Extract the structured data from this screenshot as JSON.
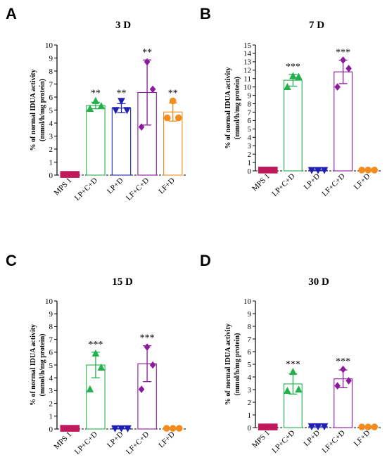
{
  "colors": {
    "MPS 1": "#c0185a",
    "LP+C+D": "#22b14c",
    "LP+D": "#1f1fb4",
    "LF+C+D": "#8b1a9c",
    "LF+D": "#f28c1e"
  },
  "markers": {
    "MPS 1": "square",
    "LP+C+D": "triangle-up",
    "LP+D": "triangle-down",
    "LF+C+D": "diamond",
    "LF+D": "circle"
  },
  "chart_data": [
    {
      "panel": "A",
      "type": "bar",
      "title": "3 D",
      "ylabel": "% of normal IDUA activity",
      "ylabel2": "(mmol/h/mg protein)",
      "categories": [
        "MPS 1",
        "LP+C+D",
        "LP+D",
        "LF+C+D",
        "LF+D"
      ],
      "ylim": [
        0,
        10
      ],
      "yticks": [
        0,
        1,
        2,
        3,
        4,
        5,
        6,
        7,
        8,
        9,
        10
      ],
      "means": [
        0.05,
        5.35,
        5.15,
        6.35,
        4.85
      ],
      "sd": [
        0.05,
        0.25,
        0.35,
        2.5,
        0.7
      ],
      "points": [
        [
          0.05,
          0.05,
          0.05
        ],
        [
          5.7,
          5.3,
          5.1
        ],
        [
          5.7,
          5.0,
          5.0
        ],
        [
          8.7,
          6.6,
          3.7
        ],
        [
          5.7,
          4.4,
          4.4
        ]
      ],
      "significance": [
        "",
        "**",
        "**",
        "**",
        "**"
      ]
    },
    {
      "panel": "B",
      "type": "bar",
      "title": "7 D",
      "ylabel": "% of normal IDUA activity",
      "ylabel2": "(mmol/h/mg protein)",
      "categories": [
        "MPS 1",
        "LP+C+D",
        "LP+D",
        "LF+C+D",
        "LF+D"
      ],
      "ylim": [
        0,
        15
      ],
      "yticks": [
        0,
        1,
        2,
        3,
        4,
        5,
        6,
        7,
        8,
        9,
        10,
        11,
        12,
        13,
        14,
        15
      ],
      "means": [
        0.1,
        10.8,
        0.1,
        11.8,
        0.1
      ],
      "sd": [
        0.1,
        0.7,
        0.1,
        1.4,
        0.05
      ],
      "points": [
        [
          0.1,
          0.1,
          0.1
        ],
        [
          11.3,
          11.2,
          10.0
        ],
        [
          0.1,
          0.1,
          0.1
        ],
        [
          13.2,
          12.2,
          10.0
        ],
        [
          0.1,
          0.1,
          0.1
        ]
      ],
      "significance": [
        "",
        "***",
        "",
        "***",
        ""
      ]
    },
    {
      "panel": "C",
      "type": "bar",
      "title": "15 D",
      "ylabel": "% of normal IDUA activity",
      "ylabel2": "(mmol/h/mg protein)",
      "categories": [
        "MPS 1",
        "LP+C+D",
        "LP+D",
        "LF+C+D",
        "LF+D"
      ],
      "ylim": [
        0,
        10
      ],
      "yticks": [
        0,
        1,
        2,
        3,
        4,
        5,
        6,
        7,
        8,
        9,
        10
      ],
      "means": [
        0.05,
        5.0,
        0.05,
        5.1,
        0.05
      ],
      "sd": [
        0.05,
        1.0,
        0.05,
        1.4,
        0.05
      ],
      "points": [
        [
          0.05,
          0.05,
          0.05
        ],
        [
          5.9,
          4.8,
          3.1
        ],
        [
          0.05,
          0.05,
          0.05
        ],
        [
          6.4,
          5.0,
          3.1
        ],
        [
          0.05,
          0.05,
          0.05
        ]
      ],
      "significance": [
        "",
        "***",
        "",
        "***",
        ""
      ]
    },
    {
      "panel": "D",
      "type": "bar",
      "title": "30 D",
      "ylabel": "% of normal IDUA activity",
      "ylabel2": "(mmol/h/mg protein)",
      "categories": [
        "MPS 1",
        "LP+C+D",
        "LP+D",
        "LF+C+D",
        "LF+D"
      ],
      "ylim": [
        0,
        10
      ],
      "yticks": [
        0,
        1,
        2,
        3,
        4,
        5,
        6,
        7,
        8,
        9,
        10
      ],
      "means": [
        0.05,
        3.45,
        0.1,
        3.85,
        0.05
      ],
      "sd": [
        0.05,
        0.8,
        0.05,
        0.7,
        0.05
      ],
      "points": [
        [
          0.05,
          0.05,
          0.05
        ],
        [
          4.4,
          3.0,
          2.9
        ],
        [
          0.1,
          0.1,
          0.1
        ],
        [
          4.6,
          3.7,
          3.3
        ],
        [
          0.05,
          0.05,
          0.05
        ]
      ],
      "significance": [
        "",
        "***",
        "",
        "***",
        ""
      ]
    }
  ]
}
